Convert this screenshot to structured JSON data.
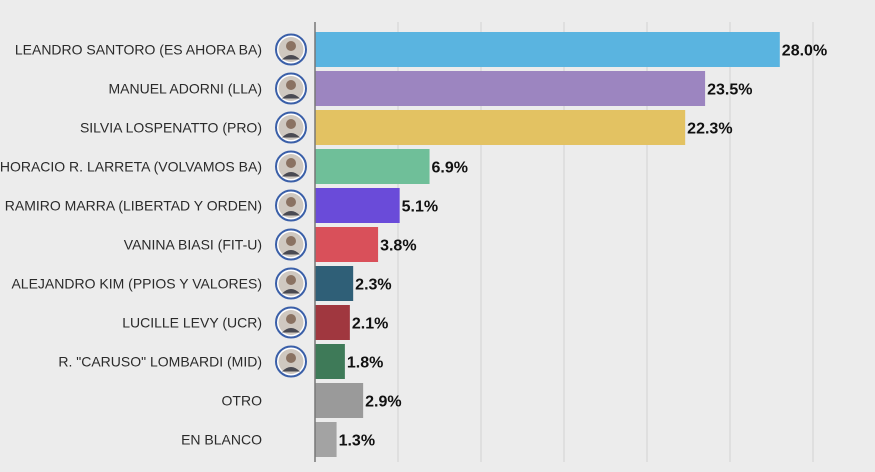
{
  "chart_data": {
    "type": "bar",
    "orientation": "horizontal",
    "title": "",
    "xlabel": "",
    "ylabel": "",
    "xlim": [
      0,
      30
    ],
    "grid": true,
    "categories": [
      "LEANDRO SANTORO (ES AHORA BA)",
      "MANUEL ADORNI (LLA)",
      "SILVIA LOSPENATTO (PRO)",
      "HORACIO R. LARRETA (VOLVAMOS BA)",
      "RAMIRO MARRA (LIBERTAD Y ORDEN)",
      "VANINA BIASI (FIT-U)",
      "ALEJANDRO KIM (PPIOS Y VALORES)",
      "LUCILLE LEVY (UCR)",
      "R. \"CARUSO\" LOMBARDI (MID)",
      "OTRO",
      "EN BLANCO"
    ],
    "values": [
      28.0,
      23.5,
      22.3,
      6.9,
      5.1,
      3.8,
      2.3,
      2.1,
      1.8,
      2.9,
      1.3
    ],
    "value_labels": [
      "28.0%",
      "23.5%",
      "22.3%",
      "6.9%",
      "5.1%",
      "3.8%",
      "2.3%",
      "2.1%",
      "1.8%",
      "2.9%",
      "1.3%"
    ],
    "colors": [
      "#5ab4e0",
      "#9c85c0",
      "#e3c262",
      "#6fbf99",
      "#6a4bd9",
      "#d9505a",
      "#2f5f77",
      "#a0373f",
      "#3e7a58",
      "#9a9a9a",
      "#a3a3a3"
    ],
    "avatars": [
      true,
      true,
      true,
      true,
      true,
      true,
      true,
      true,
      true,
      false,
      false
    ]
  }
}
